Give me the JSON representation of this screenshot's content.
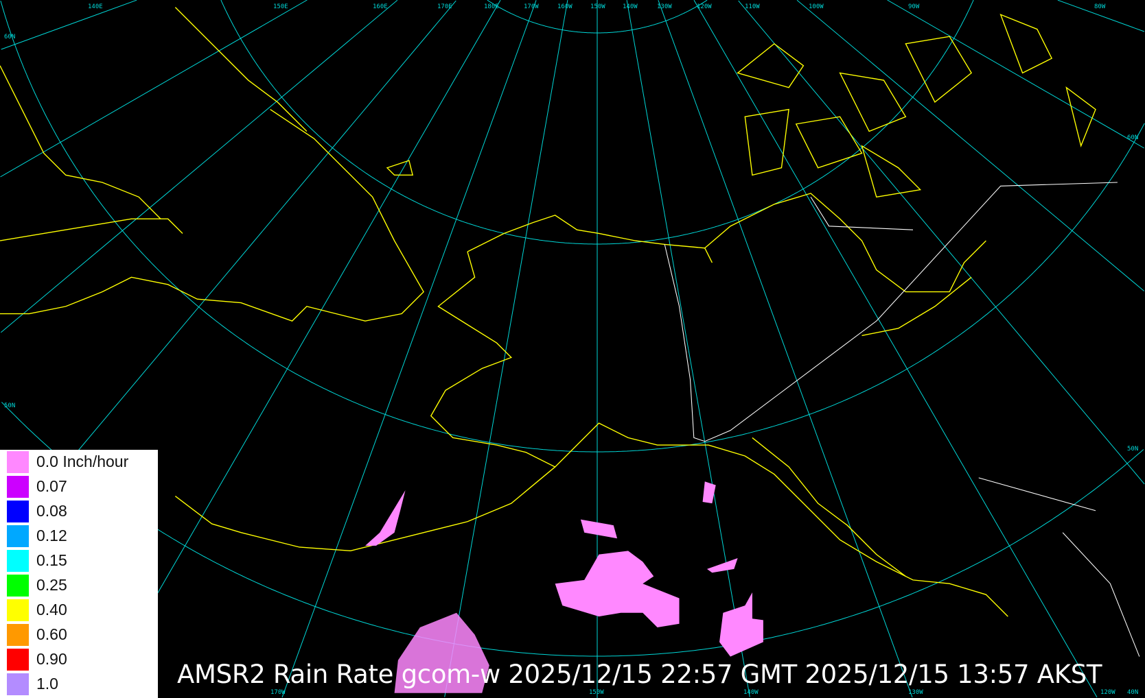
{
  "title": "AMSR2 Rain Rate gcom-w 2025/12/15 22:57 GMT 2025/12/15 13:57 AKST",
  "colors": {
    "background": "#000000",
    "grid": "#00d8d8",
    "coastline": "#ffff00",
    "border": "#ffffff",
    "rain_light": "#ff88ff"
  },
  "legend": {
    "items": [
      {
        "label": "0.0 Inch/hour",
        "color": "#ff88ff"
      },
      {
        "label": "0.07",
        "color": "#cc00ff"
      },
      {
        "label": "0.08",
        "color": "#0000ff"
      },
      {
        "label": "0.12",
        "color": "#00a8ff"
      },
      {
        "label": "0.15",
        "color": "#00ffff"
      },
      {
        "label": "0.25",
        "color": "#00ff00"
      },
      {
        "label": "0.40",
        "color": "#ffff00"
      },
      {
        "label": "0.60",
        "color": "#ff9900"
      },
      {
        "label": "0.90",
        "color": "#ff0000"
      },
      {
        "label": "1.0",
        "color": "#b38cff"
      }
    ]
  },
  "grid_labels": {
    "top": [
      "140E",
      "150E",
      "160E",
      "170E",
      "180E",
      "170W",
      "160W",
      "150W",
      "140W",
      "130W",
      "120W",
      "110W",
      "100W",
      "90W",
      "80W"
    ],
    "bottom": [
      "170W",
      "150W",
      "140W",
      "130W",
      "120W",
      "40N"
    ],
    "left": [
      "60N",
      "50N"
    ],
    "right": [
      "60N",
      "50N"
    ]
  }
}
